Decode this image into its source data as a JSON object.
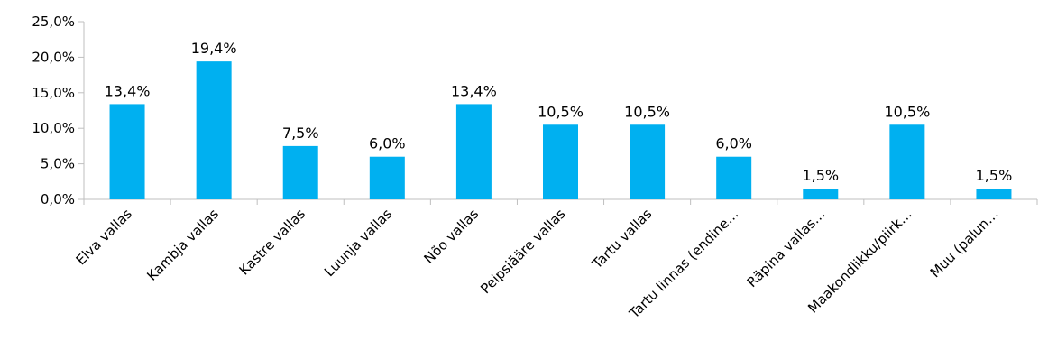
{
  "chart_data": {
    "type": "bar",
    "categories": [
      "Elva vallas",
      "Kambja vallas",
      "Kastre vallas",
      "Luunja vallas",
      "Nõo vallas",
      "Peipsiääre vallas",
      "Tartu vallas",
      "Tartu linnas (endine…",
      "Räpina vallas…",
      "Maakondlikku/piirk…",
      "Muu (palun…"
    ],
    "values": [
      13.4,
      19.4,
      7.5,
      6.0,
      13.4,
      10.5,
      10.5,
      6.0,
      1.5,
      10.5,
      1.5
    ],
    "data_labels": [
      "13,4%",
      "19,4%",
      "7,5%",
      "6,0%",
      "13,4%",
      "10,5%",
      "10,5%",
      "6,0%",
      "1,5%",
      "10,5%",
      "1,5%"
    ],
    "ylim": [
      0,
      25
    ],
    "yticks": [
      0,
      5,
      10,
      15,
      20,
      25
    ],
    "ytick_labels": [
      "0,0%",
      "5,0%",
      "10,0%",
      "15,0%",
      "20,0%",
      "25,0%"
    ],
    "grid": false,
    "legend": "none",
    "bar_color": "#00b0f0",
    "axis_color": "#bfbfbf"
  }
}
